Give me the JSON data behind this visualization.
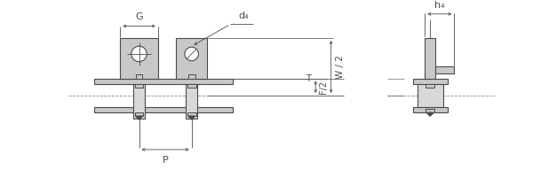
{
  "bg_color": "#ffffff",
  "line_color": "#4a4a4a",
  "fill_color": "#c8c8c8",
  "fill_light": "#d8d8d8",
  "dim_color": "#4a4a4a",
  "dashed_color": "#888888",
  "labels": {
    "G": "G",
    "d4": "d₄",
    "T": "T",
    "F2": "F/2",
    "W2": "W / 2",
    "h4": "h₄",
    "P": "P"
  },
  "figsize": [
    6.0,
    2.0
  ],
  "dpi": 100
}
